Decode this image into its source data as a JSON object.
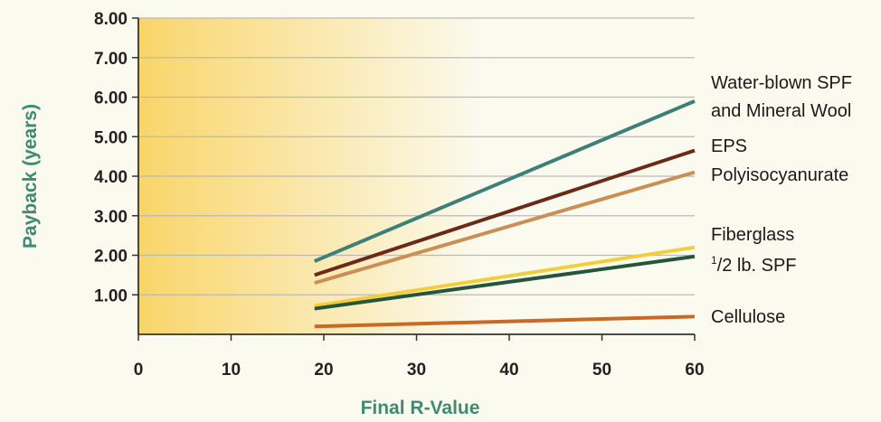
{
  "chart_data": {
    "type": "line",
    "xlabel": "Final R-Value",
    "ylabel": "Payback (years)",
    "xlim": [
      0,
      60
    ],
    "ylim": [
      0,
      8
    ],
    "x_ticks": [
      "0",
      "10",
      "20",
      "30",
      "40",
      "50",
      "60"
    ],
    "y_ticks": [
      "1.00",
      "2.00",
      "3.00",
      "4.00",
      "5.00",
      "6.00",
      "7.00",
      "8.00"
    ],
    "grid": "horizontal",
    "background_gradient": [
      "#f9d56a",
      "#fbfaef"
    ],
    "x": [
      19,
      60
    ],
    "series": [
      {
        "label_lines": [
          "Water-blown SPF",
          "and Mineral Wool"
        ],
        "values": [
          1.85,
          5.9
        ],
        "color": "#3d8078"
      },
      {
        "label_lines": [
          "EPS"
        ],
        "values": [
          1.5,
          4.65
        ],
        "color": "#6b2a17"
      },
      {
        "label_lines": [
          "Polyisocyanurate"
        ],
        "values": [
          1.3,
          4.1
        ],
        "color": "#c98f55"
      },
      {
        "label_lines": [
          "Fiberglass"
        ],
        "values": [
          0.72,
          2.2
        ],
        "color": "#f2cf3a"
      },
      {
        "label_lines": [
          "1/2 lb. SPF"
        ],
        "label_sup": "1",
        "label_main": "/2 lb. SPF",
        "values": [
          0.65,
          1.97
        ],
        "color": "#23563d"
      },
      {
        "label_lines": [
          "Cellulose"
        ],
        "values": [
          0.2,
          0.45
        ],
        "color": "#c86a25"
      }
    ]
  }
}
